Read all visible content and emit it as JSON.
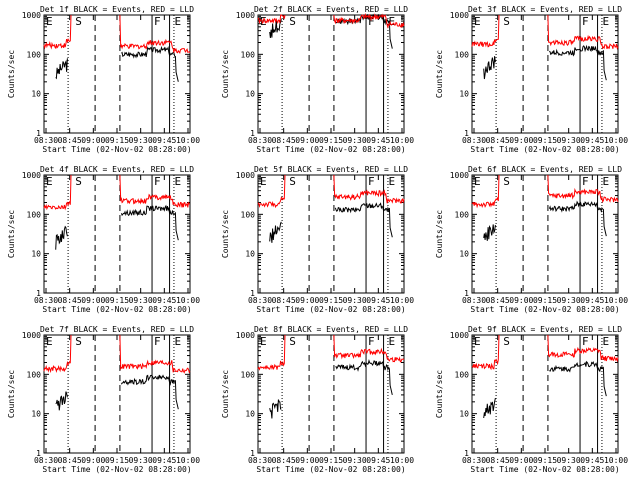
{
  "chart_data": [
    {
      "type": "line",
      "title": "Det 1f BLACK = Events, RED = LLD",
      "xlabel": "Start Time (02-Nov-02 08:28:00)",
      "ylabel": "Counts/sec",
      "ylim": [
        1,
        1000
      ],
      "yscale": "log",
      "x_ticks": [
        "08:30",
        "08:45",
        "09:00",
        "09:15",
        "09:30",
        "09:45",
        "10:00"
      ],
      "y_ticks": [
        "1",
        "10",
        "100",
        "1000"
      ],
      "markers": [
        "E",
        "S",
        "F",
        "E"
      ],
      "series": [
        {
          "name": "BLACK = Events",
          "color": "#000000",
          "level": 100,
          "start": 60,
          "gap": [
            45,
            120
          ]
        },
        {
          "name": "RED = LLD",
          "color": "#ff0000",
          "level": 160,
          "start": 170,
          "gap": [
            45,
            120
          ]
        }
      ]
    },
    {
      "type": "line",
      "title": "Det 2f BLACK = Events, RED = LLD",
      "xlabel": "Start Time (02-Nov-02 08:28:00)",
      "ylabel": "Counts/sec",
      "ylim": [
        1,
        1000
      ],
      "yscale": "log",
      "x_ticks": [
        "08:30",
        "08:45",
        "09:00",
        "09:15",
        "09:30",
        "09:45",
        "10:00"
      ],
      "y_ticks": [
        "1",
        "10",
        "100",
        "1000"
      ],
      "markers": [
        "E",
        "S",
        "F",
        "E"
      ],
      "series": [
        {
          "name": "BLACK = Events",
          "color": "#000000",
          "level": 700,
          "start": 700,
          "gap": [
            45,
            120
          ]
        },
        {
          "name": "RED = LLD",
          "color": "#ff0000",
          "level": 720,
          "start": 720,
          "gap": [
            45,
            120
          ]
        }
      ]
    },
    {
      "type": "line",
      "title": "Det 3f BLACK = Events, RED = LLD",
      "xlabel": "Start Time (02-Nov-02 08:28:00)",
      "ylabel": "Counts/sec",
      "ylim": [
        1,
        1000
      ],
      "yscale": "log",
      "x_ticks": [
        "08:30",
        "08:45",
        "09:00",
        "09:15",
        "09:30",
        "09:45",
        "10:00"
      ],
      "y_ticks": [
        "1",
        "10",
        "100",
        "1000"
      ],
      "markers": [
        "E",
        "S",
        "F",
        "E"
      ],
      "series": [
        {
          "name": "BLACK = Events",
          "color": "#000000",
          "level": 110,
          "start": 70,
          "gap": [
            45,
            120
          ]
        },
        {
          "name": "RED = LLD",
          "color": "#ff0000",
          "level": 200,
          "start": 180,
          "gap": [
            45,
            120
          ]
        }
      ]
    },
    {
      "type": "line",
      "title": "Det 4f BLACK = Events, RED = LLD",
      "xlabel": "Start Time (02-Nov-02 08:28:00)",
      "ylabel": "Counts/sec",
      "ylim": [
        1,
        1000
      ],
      "yscale": "log",
      "x_ticks": [
        "08:30",
        "08:45",
        "09:00",
        "09:15",
        "09:30",
        "09:45",
        "10:00"
      ],
      "y_ticks": [
        "1",
        "10",
        "100",
        "1000"
      ],
      "markers": [
        "E",
        "S",
        "F",
        "E"
      ],
      "series": [
        {
          "name": "BLACK = Events",
          "color": "#000000",
          "level": 110,
          "start": 40,
          "gap": [
            45,
            120
          ]
        },
        {
          "name": "RED = LLD",
          "color": "#ff0000",
          "level": 220,
          "start": 150,
          "gap": [
            45,
            120
          ]
        }
      ]
    },
    {
      "type": "line",
      "title": "Det 5f BLACK = Events, RED = LLD",
      "xlabel": "Start Time (02-Nov-02 08:28:00)",
      "ylabel": "Counts/sec",
      "ylim": [
        1,
        1000
      ],
      "yscale": "log",
      "x_ticks": [
        "08:30",
        "08:45",
        "09:00",
        "09:15",
        "09:30",
        "09:45",
        "10:00"
      ],
      "y_ticks": [
        "1",
        "10",
        "100",
        "1000"
      ],
      "markers": [
        "E",
        "S",
        "F",
        "E"
      ],
      "series": [
        {
          "name": "BLACK = Events",
          "color": "#000000",
          "level": 130,
          "start": 50,
          "gap": [
            45,
            120
          ]
        },
        {
          "name": "RED = LLD",
          "color": "#ff0000",
          "level": 280,
          "start": 180,
          "gap": [
            45,
            120
          ]
        }
      ]
    },
    {
      "type": "line",
      "title": "Det 6f BLACK = Events, RED = LLD",
      "xlabel": "Start Time (02-Nov-02 08:28:00)",
      "ylabel": "Counts/sec",
      "ylim": [
        1,
        1000
      ],
      "yscale": "log",
      "x_ticks": [
        "08:30",
        "08:45",
        "09:00",
        "09:15",
        "09:30",
        "09:45",
        "10:00"
      ],
      "y_ticks": [
        "1",
        "10",
        "100",
        "1000"
      ],
      "markers": [
        "E",
        "S",
        "F",
        "E"
      ],
      "series": [
        {
          "name": "BLACK = Events",
          "color": "#000000",
          "level": 140,
          "start": 50,
          "gap": [
            45,
            120
          ]
        },
        {
          "name": "RED = LLD",
          "color": "#ff0000",
          "level": 300,
          "start": 180,
          "gap": [
            45,
            120
          ]
        }
      ]
    },
    {
      "type": "line",
      "title": "Det 7f BLACK = Events, RED = LLD",
      "xlabel": "Start Time (02-Nov-02 08:28:00)",
      "ylabel": "Counts/sec",
      "ylim": [
        1,
        1000
      ],
      "yscale": "log",
      "x_ticks": [
        "08:30",
        "08:45",
        "09:00",
        "09:15",
        "09:30",
        "09:45",
        "10:00"
      ],
      "y_ticks": [
        "1",
        "10",
        "100",
        "1000"
      ],
      "markers": [
        "E",
        "S",
        "F",
        "E"
      ],
      "series": [
        {
          "name": "BLACK = Events",
          "color": "#000000",
          "level": 65,
          "start": 30,
          "gap": [
            45,
            120
          ]
        },
        {
          "name": "RED = LLD",
          "color": "#ff0000",
          "level": 160,
          "start": 140,
          "gap": [
            45,
            120
          ]
        }
      ]
    },
    {
      "type": "line",
      "title": "Det 8f BLACK = Events, RED = LLD",
      "xlabel": "Start Time (02-Nov-02 08:28:00)",
      "ylabel": "Counts/sec",
      "ylim": [
        1,
        1000
      ],
      "yscale": "log",
      "x_ticks": [
        "08:30",
        "08:45",
        "09:00",
        "09:15",
        "09:30",
        "09:45",
        "10:00"
      ],
      "y_ticks": [
        "1",
        "10",
        "100",
        "1000"
      ],
      "markers": [
        "E",
        "S",
        "F",
        "E"
      ],
      "series": [
        {
          "name": "BLACK = Events",
          "color": "#000000",
          "level": 150,
          "start": 20,
          "gap": [
            45,
            120
          ]
        },
        {
          "name": "RED = LLD",
          "color": "#ff0000",
          "level": 300,
          "start": 150,
          "gap": [
            45,
            120
          ]
        }
      ]
    },
    {
      "type": "line",
      "title": "Det 9f BLACK = Events, RED = LLD",
      "xlabel": "Start Time (02-Nov-02 08:28:00)",
      "ylabel": "Counts/sec",
      "ylim": [
        1,
        1000
      ],
      "yscale": "log",
      "x_ticks": [
        "08:30",
        "08:45",
        "09:00",
        "09:15",
        "09:30",
        "09:45",
        "10:00"
      ],
      "y_ticks": [
        "1",
        "10",
        "100",
        "1000"
      ],
      "markers": [
        "E",
        "S",
        "F",
        "E"
      ],
      "series": [
        {
          "name": "BLACK = Events",
          "color": "#000000",
          "level": 140,
          "start": 20,
          "gap": [
            45,
            120
          ]
        },
        {
          "name": "RED = LLD",
          "color": "#ff0000",
          "level": 320,
          "start": 160,
          "gap": [
            45,
            120
          ]
        }
      ]
    }
  ]
}
